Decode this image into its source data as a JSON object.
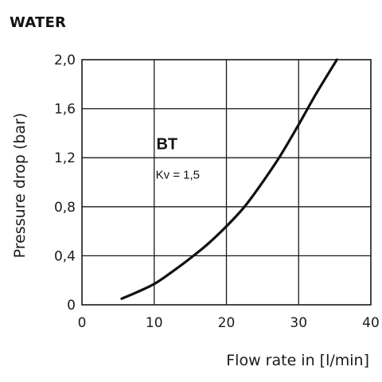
{
  "heading": "WATER",
  "chart_data": {
    "type": "line",
    "title": "WATER",
    "xlabel": "Flow rate in [l/min]",
    "ylabel": "Pressure drop (bar)",
    "xlim": [
      0,
      40
    ],
    "ylim": [
      0,
      2.0
    ],
    "x_ticks": [
      0,
      10,
      20,
      30,
      40
    ],
    "x_tick_labels": [
      "0",
      "10",
      "20",
      "30",
      "40"
    ],
    "y_ticks": [
      0,
      0.4,
      0.8,
      1.2,
      1.6,
      2.0
    ],
    "y_tick_labels": [
      "0",
      "0,4",
      "0,8",
      "1,2",
      "1,6",
      "2,0"
    ],
    "grid": true,
    "line_color": "#111111",
    "series": [
      {
        "name": "BT",
        "x": [
          5.5,
          7.5,
          10,
          12.5,
          15,
          17.5,
          20,
          22.5,
          25,
          27.5,
          30,
          32.5,
          35.3
        ],
        "y": [
          0.05,
          0.1,
          0.17,
          0.27,
          0.38,
          0.5,
          0.64,
          0.8,
          1.0,
          1.22,
          1.47,
          1.73,
          2.0
        ]
      }
    ],
    "annotations": [
      {
        "text": "Kv = 1,5",
        "x": 10.2,
        "y": 1.03
      }
    ]
  }
}
